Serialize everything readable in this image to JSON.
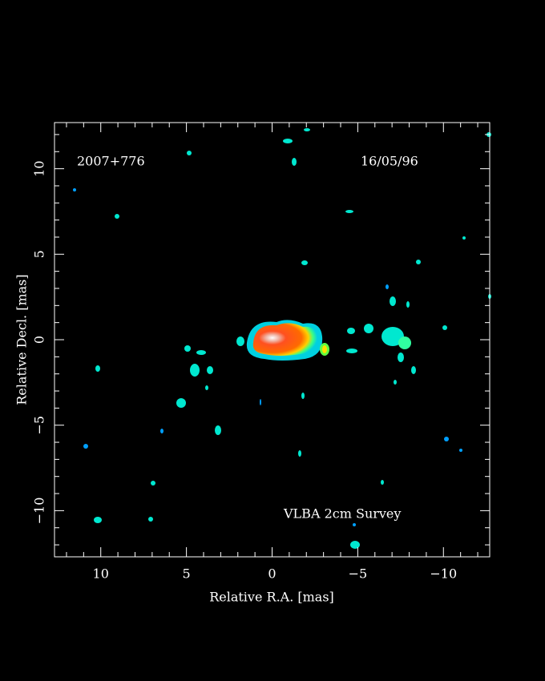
{
  "chart_data": {
    "type": "image",
    "annotations": [
      "2007+776",
      "16/05/96",
      "VLBA 2cm Survey"
    ],
    "x_label": "Relative R.A. [mas]",
    "y_label": "Relative Decl. [mas]",
    "xlim": [
      12.7,
      -12.7
    ],
    "ylim": [
      -12.7,
      12.7
    ],
    "xticks": [
      10,
      5,
      0,
      {
        "value": -5,
        "label": "−5"
      },
      {
        "value": -10,
        "label": "−10"
      }
    ],
    "yticks": [
      {
        "value": -10,
        "label": "−10"
      },
      {
        "value": -5,
        "label": "−5"
      },
      0,
      5,
      10
    ],
    "xminorticks": [
      12,
      11,
      9,
      8,
      7,
      6,
      4,
      3,
      2,
      1,
      -1,
      -2,
      -3,
      -4,
      -6,
      -7,
      -8,
      -9,
      -11,
      -12
    ],
    "yminorticks": [
      -12,
      -11,
      -9,
      -8,
      -7,
      -6,
      -4,
      -3,
      -2,
      -1,
      1,
      2,
      3,
      4,
      6,
      7,
      8,
      9,
      11,
      12
    ]
  }
}
